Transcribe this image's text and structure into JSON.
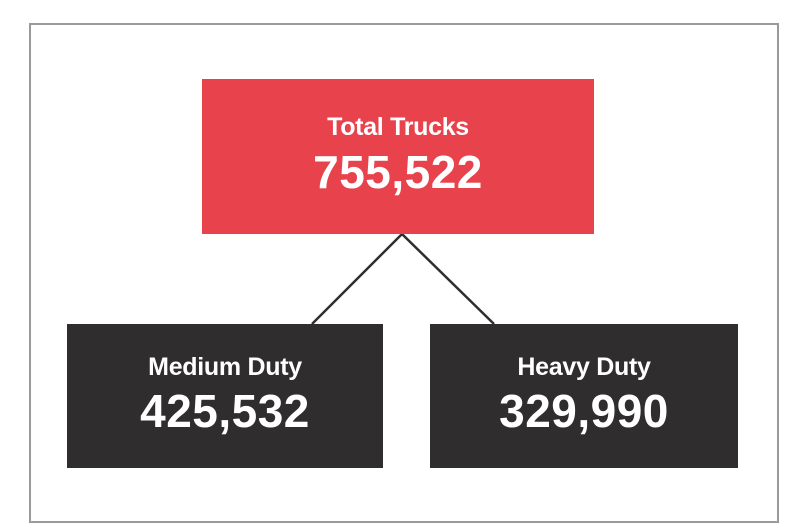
{
  "colors": {
    "total_box": "#e8434d",
    "child_box": "#2f2d2e",
    "connector": "#2f2d2e",
    "frame_border": "#9a9a9a"
  },
  "total": {
    "label": "Total Trucks",
    "value": "755,522"
  },
  "medium": {
    "label": "Medium Duty",
    "value": "425,532"
  },
  "heavy": {
    "label": "Heavy Duty",
    "value": "329,990"
  }
}
